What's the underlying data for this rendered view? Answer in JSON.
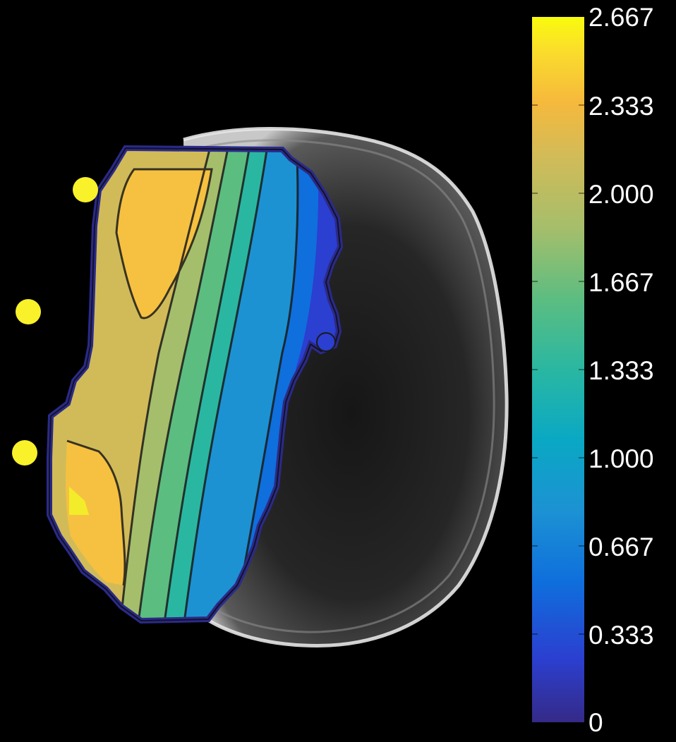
{
  "colorbar": {
    "min": 0,
    "max": 2.667,
    "tick_labels": [
      "2.667",
      "2.333",
      "2.000",
      "1.667",
      "1.333",
      "1.000",
      "0.667",
      "0.333",
      "0"
    ],
    "colormap": "parula",
    "stops": [
      "#352a87",
      "#2b3fd0",
      "#0f6fdc",
      "#1c92d3",
      "#0aa8c4",
      "#2ab7a2",
      "#5cbd81",
      "#a5be6b",
      "#d1bb59",
      "#f6b93c",
      "#fadc2c",
      "#f9fb0e"
    ]
  },
  "markers": {
    "count": 3,
    "color": "#f9f12a",
    "shape": "circle"
  },
  "background": {
    "type": "grayscale-mri-slice",
    "color": "#000000"
  },
  "overlay": {
    "type": "filled-contour-map",
    "contour_line_color": "#1a1a1a"
  }
}
